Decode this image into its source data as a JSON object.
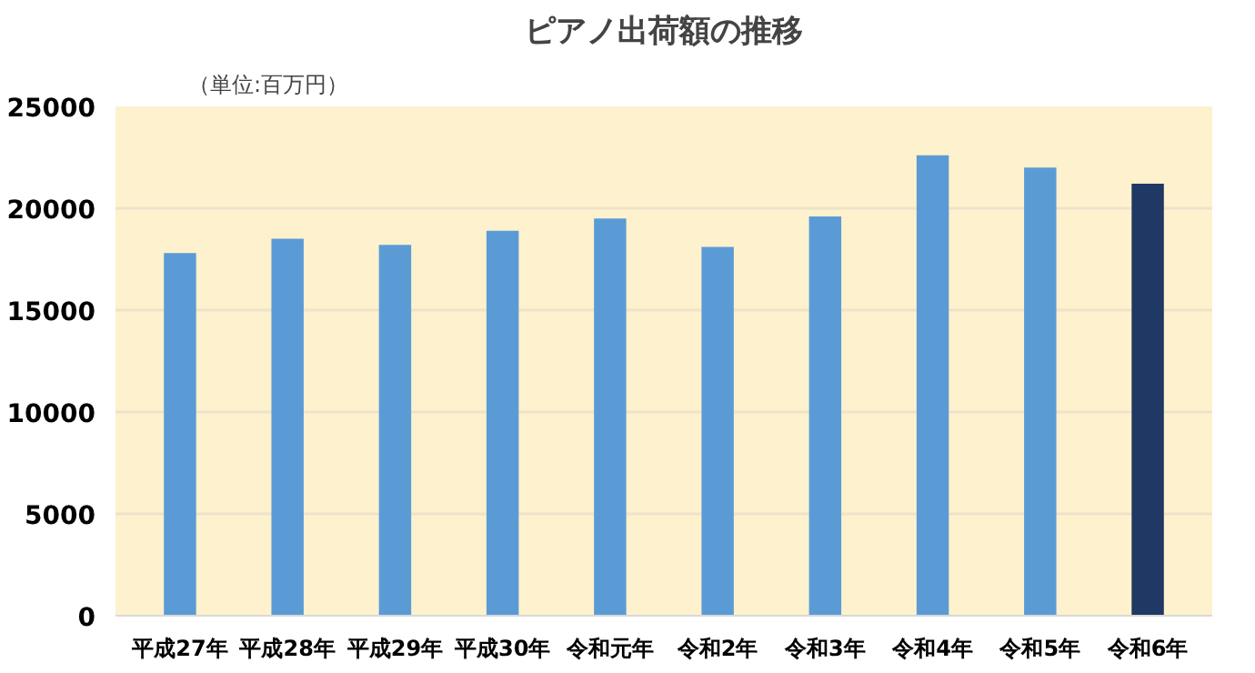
{
  "chart_data": {
    "type": "bar",
    "title": "ピアノ出荷額の推移",
    "ylabel": "（単位:百万円）",
    "categories": [
      "平成27年",
      "平成28年",
      "平成29年",
      "平成30年",
      "令和元年",
      "令和2年",
      "令和3年",
      "令和4年",
      "令和5年",
      "令和6年"
    ],
    "values": [
      17800,
      18500,
      18200,
      18900,
      19500,
      18100,
      19600,
      22600,
      22000,
      21200
    ],
    "colors": [
      "#5b9bd5",
      "#5b9bd5",
      "#5b9bd5",
      "#5b9bd5",
      "#5b9bd5",
      "#5b9bd5",
      "#5b9bd5",
      "#5b9bd5",
      "#5b9bd5",
      "#1f3864"
    ],
    "ylim": [
      0,
      25000
    ],
    "yticks": [
      0,
      5000,
      10000,
      15000,
      20000,
      25000
    ],
    "grid": "y"
  }
}
